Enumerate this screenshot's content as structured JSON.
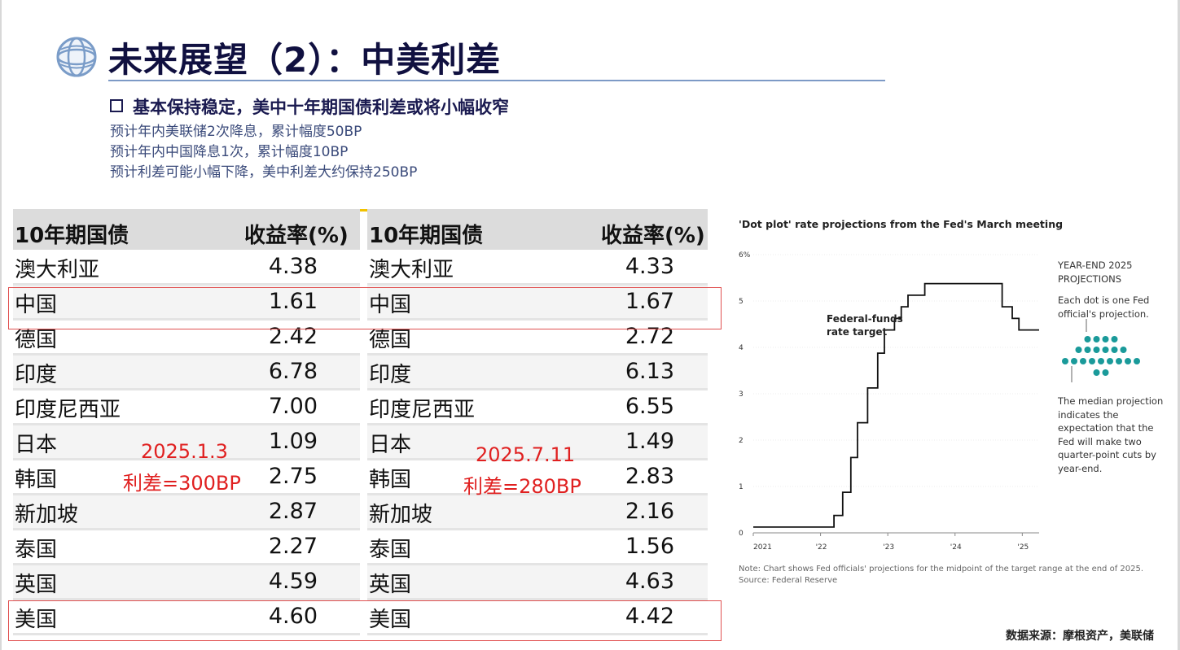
{
  "title": "未来展望（2）：中美利差",
  "bullet": {
    "heading": "基本保持稳定，美中十年期国债利差或将小幅收窄",
    "lines": [
      "预计年内美联储2次降息，累计幅度50BP",
      "预计年内中国降息1次，累计幅度10BP",
      "预计利差可能小幅下降，美中利差大约保持250BP"
    ]
  },
  "table_left": {
    "header": [
      "10年期国债",
      "收益率(%)"
    ],
    "rows": [
      {
        "name": "澳大利亚",
        "value": "4.38"
      },
      {
        "name": "中国",
        "value": "1.61"
      },
      {
        "name": "德国",
        "value": "2.42"
      },
      {
        "name": "印度",
        "value": "6.78"
      },
      {
        "name": "印度尼西亚",
        "value": "7.00"
      },
      {
        "name": "日本",
        "value": "1.09"
      },
      {
        "name": "韩国",
        "value": "2.75"
      },
      {
        "name": "新加坡",
        "value": "2.87"
      },
      {
        "name": "泰国",
        "value": "2.27"
      },
      {
        "name": "英国",
        "value": "4.59"
      },
      {
        "name": "美国",
        "value": "4.60"
      }
    ],
    "annotation": {
      "date": "2025.1.3",
      "spread": "利差=300BP"
    }
  },
  "table_right": {
    "header": [
      "10年期国债",
      "收益率(%)"
    ],
    "rows": [
      {
        "name": "澳大利亚",
        "value": "4.33"
      },
      {
        "name": "中国",
        "value": "1.67"
      },
      {
        "name": "德国",
        "value": "2.72"
      },
      {
        "name": "印度",
        "value": "6.13"
      },
      {
        "name": "印度尼西亚",
        "value": "6.55"
      },
      {
        "name": "日本",
        "value": "1.49"
      },
      {
        "name": "韩国",
        "value": "2.83"
      },
      {
        "name": "新加坡",
        "value": "2.16"
      },
      {
        "name": "泰国",
        "value": "1.56"
      },
      {
        "name": "英国",
        "value": "4.63"
      },
      {
        "name": "美国",
        "value": "4.42"
      }
    ],
    "annotation": {
      "date": "2025.7.11",
      "spread": "利差=280BP"
    }
  },
  "chart_data": {
    "type": "line",
    "title": "'Dot plot' rate projections from the Fed's March meeting",
    "series_label": "Federal-funds rate target",
    "y_ticks": [
      "0",
      "1",
      "2",
      "3",
      "4",
      "5",
      "6%"
    ],
    "x_ticks": [
      "2021",
      "'22",
      "'23",
      "'24",
      "'25"
    ],
    "ylim": [
      0,
      6
    ],
    "xlim": [
      2021.0,
      2025.25
    ],
    "points": [
      [
        2021.0,
        0.125
      ],
      [
        2022.2,
        0.125
      ],
      [
        2022.2,
        0.375
      ],
      [
        2022.33,
        0.375
      ],
      [
        2022.33,
        0.875
      ],
      [
        2022.45,
        0.875
      ],
      [
        2022.45,
        1.625
      ],
      [
        2022.55,
        1.625
      ],
      [
        2022.55,
        2.375
      ],
      [
        2022.7,
        2.375
      ],
      [
        2022.7,
        3.125
      ],
      [
        2022.85,
        3.125
      ],
      [
        2022.85,
        3.875
      ],
      [
        2022.95,
        3.875
      ],
      [
        2022.95,
        4.375
      ],
      [
        2023.1,
        4.375
      ],
      [
        2023.1,
        4.625
      ],
      [
        2023.2,
        4.625
      ],
      [
        2023.2,
        4.875
      ],
      [
        2023.3,
        4.875
      ],
      [
        2023.3,
        5.125
      ],
      [
        2023.55,
        5.125
      ],
      [
        2023.55,
        5.375
      ],
      [
        2024.7,
        5.375
      ],
      [
        2024.7,
        4.875
      ],
      [
        2024.85,
        4.875
      ],
      [
        2024.85,
        4.625
      ],
      [
        2024.95,
        4.625
      ],
      [
        2024.95,
        4.375
      ],
      [
        2025.25,
        4.375
      ]
    ],
    "projections": {
      "heading": "YEAR-END 2025 PROJECTIONS",
      "dot_note": "Each dot is one Fed official's projection.",
      "median_note": "The median projection indicates the expectation that the Fed will make two quarter-point cuts by year-end.",
      "dot_rows": [
        4,
        6,
        9,
        2
      ],
      "dot_color": "#1a9a9a"
    },
    "note": "Note: Chart shows Fed officials' projections for the midpoint of the target range at the end of 2025.",
    "source": "Source: Federal Reserve"
  },
  "footer": {
    "source": "数据来源：摩根资产，美联储"
  }
}
